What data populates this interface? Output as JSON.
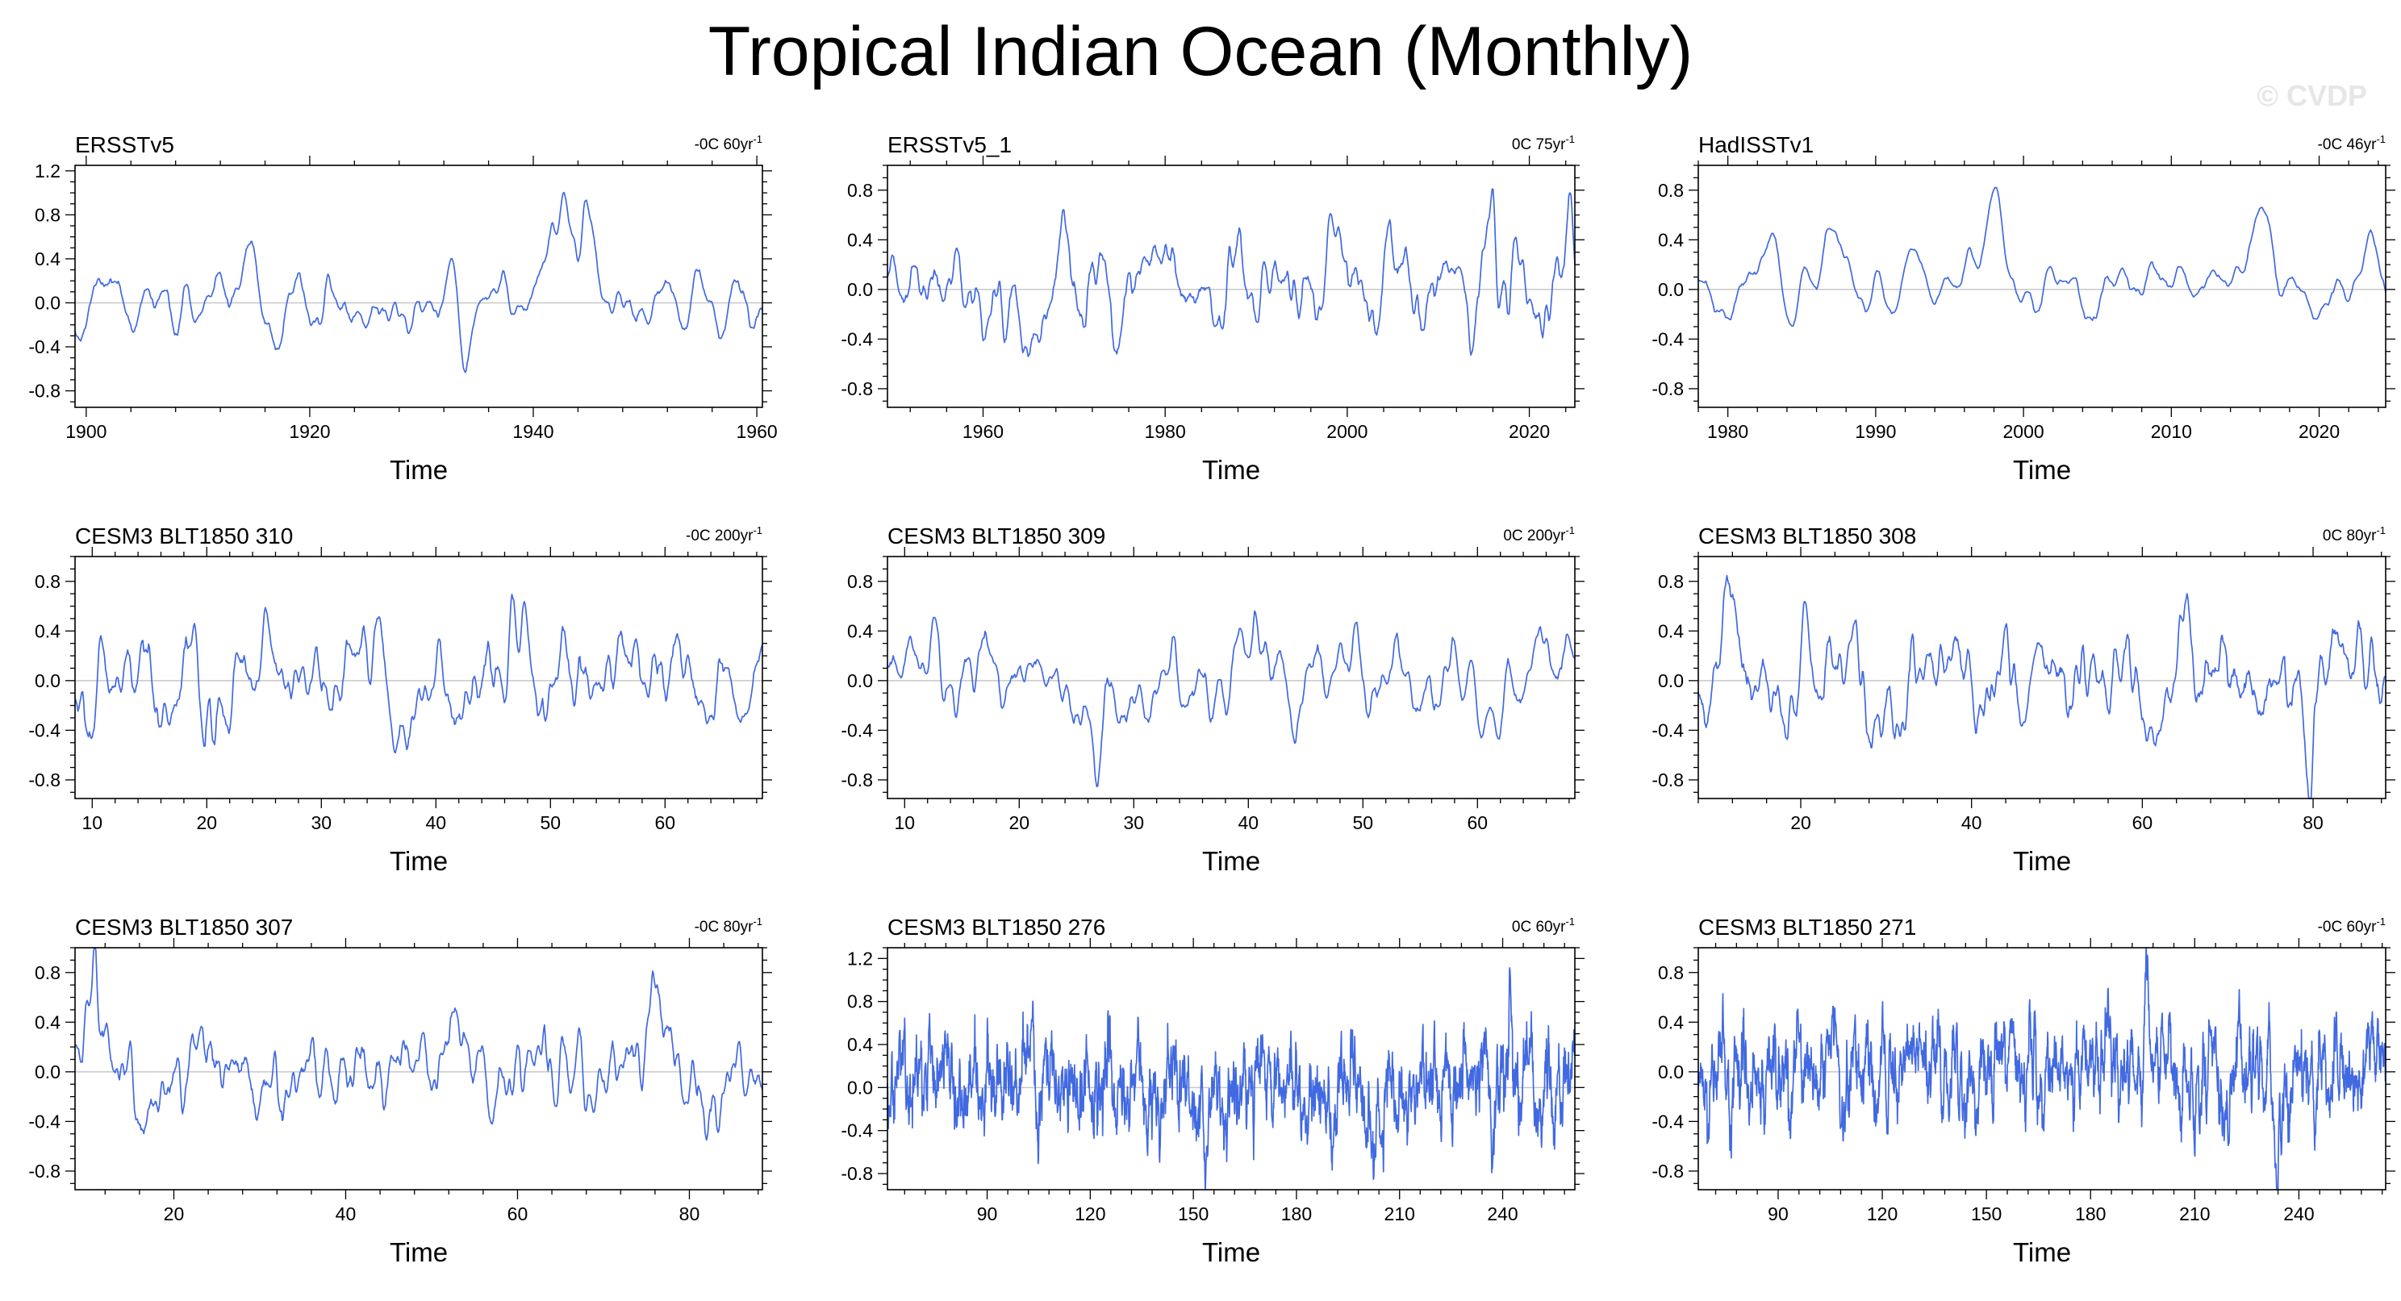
{
  "title": "Tropical Indian Ocean (Monthly)",
  "watermark": "© CVDP",
  "colors": {
    "line": "#4169e1",
    "axis": "#000000",
    "zero": "#c8c8c8"
  },
  "chart_data": [
    {
      "type": "line",
      "title": "ERSSTv5",
      "trend_value": "-0C",
      "trend_period": "60yr",
      "trend_exp": "-1",
      "xlabel": "Time",
      "xlim": [
        1899,
        1960.5
      ],
      "xticks": [
        1900,
        1920,
        1940,
        1960
      ],
      "ylim": [
        -0.95,
        1.25
      ],
      "yticks": [
        "1.2",
        "0.8",
        "0.4",
        "0.0",
        "-0.4",
        "-0.8"
      ],
      "series_length": 732,
      "amplitude": 0.17,
      "smooth": 4,
      "seed": 11,
      "events": [
        {
          "x": 1941.5,
          "y": 0.75,
          "w": 1.2
        },
        {
          "x": 1944.5,
          "y": 0.55,
          "w": 1.1
        },
        {
          "x": 1934,
          "y": -0.55,
          "w": 0.5
        },
        {
          "x": 1917,
          "y": -0.45,
          "w": 0.4
        },
        {
          "x": 1957,
          "y": -0.4,
          "w": 0.6
        },
        {
          "x": 1902,
          "y": 0.3,
          "w": 1.0
        }
      ]
    },
    {
      "type": "line",
      "title": "ERSSTv5_1",
      "trend_value": "0C",
      "trend_period": "75yr",
      "trend_exp": "-1",
      "xlabel": "Time",
      "xlim": [
        1949.5,
        2025
      ],
      "xticks": [
        1960,
        1980,
        2000,
        2020
      ],
      "ylim": [
        -0.95,
        1.0
      ],
      "yticks": [
        "0.8",
        "0.4",
        "0.0",
        "-0.4",
        "-0.8"
      ],
      "series_length": 900,
      "amplitude": 0.22,
      "smooth": 3,
      "seed": 23,
      "events": [
        {
          "x": 1998,
          "y": 0.5,
          "w": 0.7
        },
        {
          "x": 2016,
          "y": 0.45,
          "w": 0.8
        },
        {
          "x": 2024.5,
          "y": 0.6,
          "w": 0.4
        },
        {
          "x": 1987.5,
          "y": 0.35,
          "w": 0.8
        },
        {
          "x": 1974,
          "y": -0.3,
          "w": 0.6
        }
      ]
    },
    {
      "type": "line",
      "title": "HadISSTv1",
      "trend_value": "-0C",
      "trend_period": "46yr",
      "trend_exp": "-1",
      "xlabel": "Time",
      "xlim": [
        1978,
        2024.5
      ],
      "xticks": [
        1980,
        1990,
        2000,
        2010,
        2020
      ],
      "ylim": [
        -0.95,
        1.0
      ],
      "yticks": [
        "0.8",
        "0.4",
        "0.0",
        "-0.4",
        "-0.8"
      ],
      "series_length": 552,
      "amplitude": 0.12,
      "smooth": 4,
      "seed": 37,
      "events": [
        {
          "x": 1998,
          "y": 0.65,
          "w": 0.6
        },
        {
          "x": 2016,
          "y": 0.5,
          "w": 0.7
        },
        {
          "x": 2023.5,
          "y": 0.45,
          "w": 0.5
        },
        {
          "x": 1983,
          "y": 0.45,
          "w": 0.6
        },
        {
          "x": 1987.5,
          "y": 0.4,
          "w": 0.8
        },
        {
          "x": 1992.5,
          "y": 0.3,
          "w": 0.6
        }
      ]
    },
    {
      "type": "line",
      "title": "CESM3 BLT1850 310",
      "trend_value": "-0C",
      "trend_period": "200yr",
      "trend_exp": "-1",
      "xlabel": "Time",
      "xlim": [
        8.5,
        68.5
      ],
      "xticks": [
        10,
        20,
        30,
        40,
        50,
        60
      ],
      "ylim": [
        -0.95,
        1.0
      ],
      "yticks": [
        "0.8",
        "0.4",
        "0.0",
        "-0.4",
        "-0.8"
      ],
      "series_length": 720,
      "amplitude": 0.24,
      "smooth": 3,
      "seed": 41,
      "events": [
        {
          "x": 22.5,
          "y": 0.5,
          "w": 0.3
        },
        {
          "x": 19.7,
          "y": -0.35,
          "w": 0.3
        }
      ]
    },
    {
      "type": "line",
      "title": "CESM3 BLT1850 309",
      "trend_value": "0C",
      "trend_period": "200yr",
      "trend_exp": "-1",
      "xlabel": "Time",
      "xlim": [
        8.5,
        68.5
      ],
      "xticks": [
        10,
        20,
        30,
        40,
        50,
        60
      ],
      "ylim": [
        -0.95,
        1.0
      ],
      "yticks": [
        "0.8",
        "0.4",
        "0.0",
        "-0.4",
        "-0.8"
      ],
      "series_length": 720,
      "amplitude": 0.21,
      "smooth": 3,
      "seed": 53,
      "events": [
        {
          "x": 12.5,
          "y": 0.35,
          "w": 0.4
        },
        {
          "x": 27,
          "y": -0.4,
          "w": 0.3
        },
        {
          "x": 58,
          "y": 0.35,
          "w": 0.4
        }
      ]
    },
    {
      "type": "line",
      "title": "CESM3 BLT1850 308",
      "trend_value": "0C",
      "trend_period": "80yr",
      "trend_exp": "-1",
      "xlabel": "Time",
      "xlim": [
        8,
        88.5
      ],
      "xticks": [
        20,
        40,
        60,
        80
      ],
      "ylim": [
        -0.95,
        1.0
      ],
      "yticks": [
        "0.8",
        "0.4",
        "0.0",
        "-0.4",
        "-0.8"
      ],
      "series_length": 960,
      "amplitude": 0.22,
      "smooth": 3,
      "seed": 67,
      "events": [
        {
          "x": 11.5,
          "y": 0.7,
          "w": 0.4
        },
        {
          "x": 20.5,
          "y": 0.55,
          "w": 0.4
        },
        {
          "x": 65,
          "y": 0.45,
          "w": 0.4
        },
        {
          "x": 79.5,
          "y": -0.6,
          "w": 0.4
        }
      ]
    },
    {
      "type": "line",
      "title": "CESM3 BLT1850 307",
      "trend_value": "-0C",
      "trend_period": "80yr",
      "trend_exp": "-1",
      "xlabel": "Time",
      "xlim": [
        8.5,
        88.5
      ],
      "xticks": [
        20,
        40,
        60,
        80
      ],
      "ylim": [
        -0.95,
        1.0
      ],
      "yticks": [
        "0.8",
        "0.4",
        "0.0",
        "-0.4",
        "-0.8"
      ],
      "series_length": 960,
      "amplitude": 0.2,
      "smooth": 3,
      "seed": 79,
      "events": [
        {
          "x": 11,
          "y": 0.65,
          "w": 0.4
        },
        {
          "x": 75.5,
          "y": 0.55,
          "w": 1.0
        },
        {
          "x": 54,
          "y": 0.45,
          "w": 0.5
        },
        {
          "x": 15.5,
          "y": -0.4,
          "w": 0.4
        }
      ]
    },
    {
      "type": "line",
      "title": "CESM3 BLT1850 276",
      "trend_value": "0C",
      "trend_period": "60yr",
      "trend_exp": "-1",
      "xlabel": "Time",
      "xlim": [
        61,
        261
      ],
      "xticks": [
        90,
        120,
        150,
        180,
        210,
        240
      ],
      "ylim": [
        -0.95,
        1.3
      ],
      "yticks": [
        "1.2",
        "0.8",
        "0.4",
        "0.0",
        "-0.4",
        "-0.8"
      ],
      "series_length": 2400,
      "amplitude": 0.26,
      "smooth": 1,
      "seed": 97,
      "events": [
        {
          "x": 193,
          "y": 0.75,
          "w": 0.3
        },
        {
          "x": 242,
          "y": 0.65,
          "w": 0.3
        },
        {
          "x": 237,
          "y": -0.5,
          "w": 0.3
        }
      ]
    },
    {
      "type": "line",
      "title": "CESM3 BLT1850 271",
      "trend_value": "-0C",
      "trend_period": "60yr",
      "trend_exp": "-1",
      "xlabel": "Time",
      "xlim": [
        67,
        265
      ],
      "xticks": [
        90,
        120,
        150,
        180,
        210,
        240
      ],
      "ylim": [
        -0.95,
        1.0
      ],
      "yticks": [
        "0.8",
        "0.4",
        "0.0",
        "-0.4",
        "-0.8"
      ],
      "series_length": 2376,
      "amplitude": 0.24,
      "smooth": 1,
      "seed": 113,
      "events": [
        {
          "x": 164,
          "y": 0.6,
          "w": 0.3
        },
        {
          "x": 196,
          "y": 0.5,
          "w": 0.3
        },
        {
          "x": 139,
          "y": -0.5,
          "w": 0.3
        }
      ]
    }
  ]
}
